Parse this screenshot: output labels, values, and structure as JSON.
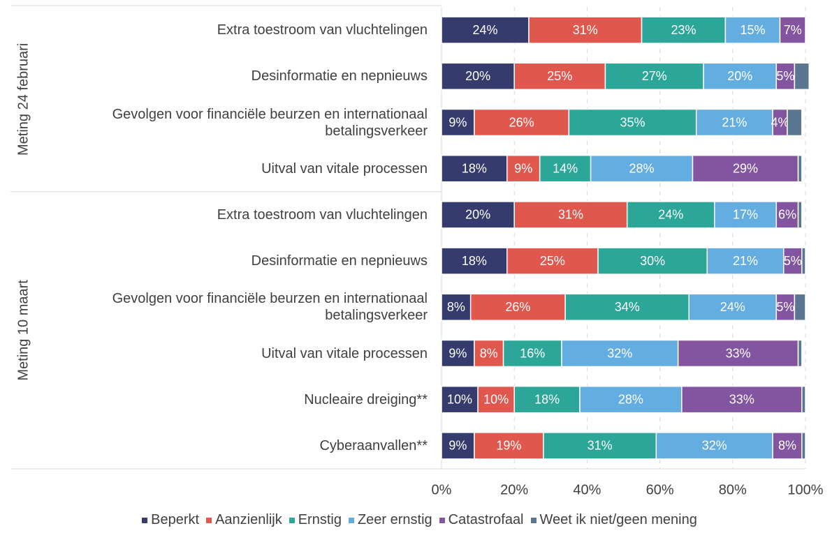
{
  "chart_data": {
    "type": "stacked_bar_horizontal",
    "groups": [
      {
        "name": "Meting 24 februari",
        "categories": [
          "Extra toestroom van vluchtelingen",
          "Desinformatie en nepnieuws",
          "Gevolgen voor financiële beurzen en internationaal betalingsverkeer",
          "Uitval van vitale processen"
        ]
      },
      {
        "name": "Meting 10 maart",
        "categories": [
          "Extra toestroom van vluchtelingen",
          "Desinformatie en nepnieuws",
          "Gevolgen voor financiële beurzen en internationaal betalingsverkeer",
          "Uitval van vitale processen",
          "Nucleaire dreiging**",
          "Cyberaanvallen**"
        ]
      }
    ],
    "series": [
      {
        "name": "Beperkt",
        "color": "#353b6c",
        "values": [
          24,
          20,
          9,
          18,
          20,
          18,
          8,
          9,
          10,
          9
        ],
        "value_labels": [
          "24%",
          "20%",
          "9%",
          "18%",
          "20%",
          "18%",
          "8%",
          "9%",
          "10%",
          "9%"
        ]
      },
      {
        "name": "Aanzienlijk",
        "color": "#e0574e",
        "values": [
          31,
          25,
          26,
          9,
          31,
          25,
          26,
          8,
          10,
          19
        ],
        "value_labels": [
          "31%",
          "25%",
          "26%",
          "9%",
          "31%",
          "25%",
          "26%",
          "8%",
          "10%",
          "19%"
        ]
      },
      {
        "name": "Ernstig",
        "color": "#2ba698",
        "values": [
          23,
          27,
          35,
          14,
          24,
          30,
          34,
          16,
          18,
          31
        ],
        "value_labels": [
          "23%",
          "27%",
          "35%",
          "14%",
          "24%",
          "30%",
          "34%",
          "16%",
          "18%",
          "31%"
        ]
      },
      {
        "name": "Zeer ernstig",
        "color": "#64ade0",
        "values": [
          15,
          20,
          21,
          28,
          17,
          21,
          24,
          32,
          28,
          32
        ],
        "value_labels": [
          "15%",
          "20%",
          "21%",
          "28%",
          "17%",
          "21%",
          "24%",
          "32%",
          "28%",
          "32%"
        ]
      },
      {
        "name": "Catastrofaal",
        "color": "#8355a0",
        "values": [
          7,
          5,
          4,
          29,
          6,
          5,
          5,
          33,
          33,
          8
        ],
        "value_labels": [
          "7%",
          "5%",
          "4%",
          "29%",
          "6%",
          "5%",
          "5%",
          "33%",
          "33%",
          "8%"
        ]
      },
      {
        "name": "Weet ik niet/geen mening",
        "color": "#5b7690",
        "values": [
          0,
          4,
          4,
          1,
          1,
          1,
          3,
          1,
          1,
          1
        ]
      }
    ],
    "xlim": [
      0,
      100
    ],
    "xticks": [
      {
        "value": 0,
        "label": "0%"
      },
      {
        "value": 20,
        "label": "20%"
      },
      {
        "value": 40,
        "label": "40%"
      },
      {
        "value": 60,
        "label": "60%"
      },
      {
        "value": 80,
        "label": "80%"
      },
      {
        "value": 100,
        "label": "100%"
      }
    ],
    "grid": true
  }
}
